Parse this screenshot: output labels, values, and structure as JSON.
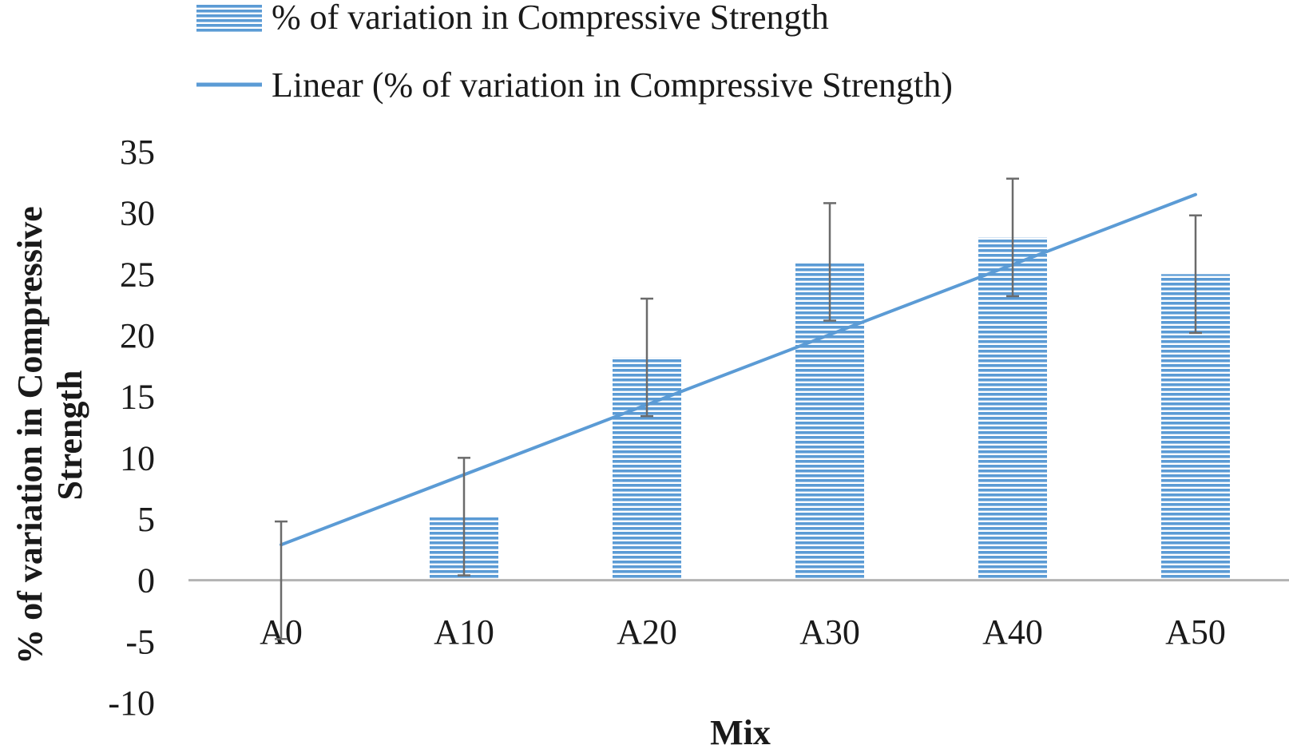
{
  "chart_data": {
    "type": "bar",
    "categories": [
      "A0",
      "A10",
      "A20",
      "A30",
      "A40",
      "A50"
    ],
    "series": [
      {
        "name": "% of variation in Compressive Strength",
        "values": [
          0,
          5.2,
          18.2,
          26,
          28,
          25
        ],
        "error_bars": [
          4.8,
          4.8,
          4.8,
          4.8,
          4.8,
          4.8
        ],
        "color": "#5b9bd5"
      }
    ],
    "trendline": {
      "name": "Linear (% of variation in Compressive Strength)",
      "type": "linear",
      "start": 2.9,
      "end": 31.5,
      "color": "#5b9bd5"
    },
    "xlabel": "Mix",
    "ylabel_lines": [
      "% of variation in Compressive",
      "Strength"
    ],
    "ylim": [
      -10,
      35
    ],
    "yticks": [
      "35",
      "30",
      "25",
      "20",
      "15",
      "10",
      "5",
      "0",
      "-5",
      "-10"
    ],
    "grid": false,
    "legend_position": "top"
  }
}
